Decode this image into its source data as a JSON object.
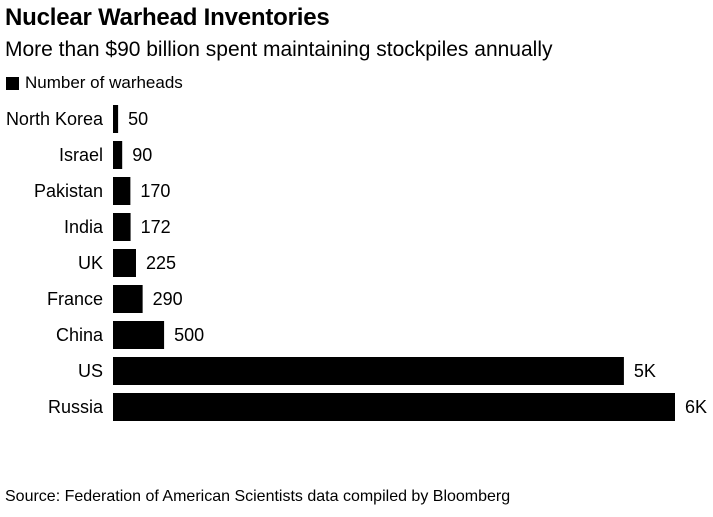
{
  "colors": {
    "bar": "#000000",
    "text": "#000000",
    "background": "#ffffff"
  },
  "chart_data": {
    "type": "bar",
    "orientation": "horizontal",
    "title": "Nuclear Warhead Inventories",
    "subtitle": "More than $90 billion spent maintaining stockpiles annually",
    "legend": {
      "label": "Number of warheads",
      "placement": "top-left"
    },
    "categories": [
      "North Korea",
      "Israel",
      "Pakistan",
      "India",
      "UK",
      "France",
      "China",
      "US",
      "Russia"
    ],
    "series": [
      {
        "name": "Number of warheads",
        "values": [
          50,
          90,
          170,
          172,
          225,
          290,
          500,
          5000,
          5500
        ],
        "labels": [
          "50",
          "90",
          "170",
          "172",
          "225",
          "290",
          "500",
          "5K",
          "6K"
        ]
      }
    ],
    "xlim": [
      0,
      5500
    ],
    "grid": false,
    "source": "Source: Federation of American Scientists data compiled by Bloomberg"
  }
}
